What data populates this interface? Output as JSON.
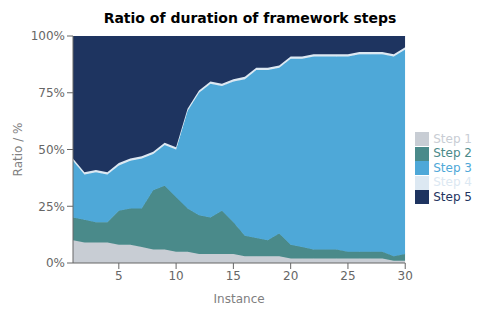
{
  "chart_data": {
    "type": "area",
    "stacked": true,
    "title": "Ratio of duration of framework steps",
    "xlabel": "Instance",
    "ylabel": "Ratio / %",
    "x": [
      1,
      2,
      3,
      4,
      5,
      6,
      7,
      8,
      9,
      10,
      11,
      12,
      13,
      14,
      15,
      16,
      17,
      18,
      19,
      20,
      21,
      22,
      23,
      24,
      25,
      26,
      27,
      28,
      29,
      30
    ],
    "series": [
      {
        "name": "Step 1",
        "color": "#c8cdd4",
        "values": [
          0.1,
          0.09,
          0.09,
          0.09,
          0.08,
          0.08,
          0.07,
          0.06,
          0.06,
          0.05,
          0.05,
          0.04,
          0.04,
          0.04,
          0.04,
          0.03,
          0.03,
          0.03,
          0.03,
          0.02,
          0.02,
          0.02,
          0.02,
          0.02,
          0.02,
          0.02,
          0.02,
          0.02,
          0.01,
          0.01
        ]
      },
      {
        "name": "Step 2",
        "color": "#4a8a8a",
        "values": [
          0.1,
          0.1,
          0.09,
          0.09,
          0.15,
          0.16,
          0.17,
          0.26,
          0.28,
          0.24,
          0.19,
          0.17,
          0.16,
          0.19,
          0.14,
          0.09,
          0.08,
          0.07,
          0.1,
          0.06,
          0.05,
          0.04,
          0.04,
          0.04,
          0.03,
          0.03,
          0.03,
          0.03,
          0.02,
          0.03
        ]
      },
      {
        "name": "Step 3",
        "color": "#4ea8d8",
        "values": [
          0.25,
          0.2,
          0.22,
          0.21,
          0.2,
          0.21,
          0.22,
          0.16,
          0.18,
          0.21,
          0.43,
          0.54,
          0.59,
          0.55,
          0.62,
          0.69,
          0.74,
          0.75,
          0.73,
          0.82,
          0.83,
          0.85,
          0.85,
          0.85,
          0.86,
          0.87,
          0.87,
          0.87,
          0.88,
          0.9
        ]
      },
      {
        "name": "Step 4",
        "color": "#dce8f2",
        "values": [
          0.01,
          0.01,
          0.01,
          0.01,
          0.01,
          0.01,
          0.01,
          0.01,
          0.01,
          0.01,
          0.01,
          0.01,
          0.01,
          0.01,
          0.01,
          0.01,
          0.01,
          0.01,
          0.01,
          0.01,
          0.01,
          0.01,
          0.01,
          0.01,
          0.01,
          0.01,
          0.01,
          0.01,
          0.01,
          0.01
        ]
      },
      {
        "name": "Step 5",
        "color": "#1e3460",
        "values": [
          0.54,
          0.6,
          0.59,
          0.6,
          0.56,
          0.54,
          0.53,
          0.51,
          0.47,
          0.49,
          0.32,
          0.24,
          0.2,
          0.21,
          0.19,
          0.18,
          0.14,
          0.14,
          0.13,
          0.09,
          0.09,
          0.08,
          0.08,
          0.08,
          0.08,
          0.07,
          0.07,
          0.07,
          0.08,
          0.05
        ]
      }
    ],
    "xlim": [
      1,
      30
    ],
    "xticks": [
      5,
      10,
      15,
      20,
      25,
      30
    ],
    "ylim": [
      0,
      1
    ],
    "yticks": [
      {
        "value": 0,
        "label": "0%"
      },
      {
        "value": 0.25,
        "label": "25%"
      },
      {
        "value": 0.5,
        "label": "50%"
      },
      {
        "value": 0.75,
        "label": "75%"
      },
      {
        "value": 1.0,
        "label": "100%"
      }
    ],
    "legend": "right",
    "grid": false
  }
}
